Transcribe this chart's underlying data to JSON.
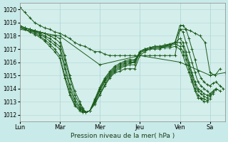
{
  "background_color": "#c8eae8",
  "plot_bg_color": "#d4eeec",
  "grid_color": "#b0d8d4",
  "line_color": "#1a5c1a",
  "marker_color": "#1a5c1a",
  "xlabel": "Pression niveau de la mer( hPa )",
  "ylim": [
    1011.5,
    1020.5
  ],
  "yticks": [
    1012,
    1013,
    1014,
    1015,
    1016,
    1017,
    1018,
    1019,
    1020
  ],
  "xtick_labels": [
    "Lun",
    "Mar",
    "Mer",
    "Jeu",
    "Ven",
    "Sa"
  ],
  "xtick_positions": [
    0,
    40,
    80,
    120,
    160,
    190
  ],
  "total_hours": 205,
  "series": [
    {
      "x": [
        0,
        5,
        10,
        15,
        20,
        25,
        30,
        35,
        40,
        45,
        50,
        55,
        60,
        65,
        70,
        75,
        80,
        85,
        90,
        95,
        100,
        105,
        110,
        115,
        120,
        125,
        130,
        135,
        140,
        145,
        150,
        155,
        160,
        165,
        170,
        175,
        180,
        185,
        190,
        195,
        200
      ],
      "y": [
        1020.2,
        1019.8,
        1019.4,
        1019.0,
        1018.8,
        1018.6,
        1018.5,
        1018.3,
        1018.2,
        1018.0,
        1017.8,
        1017.5,
        1017.3,
        1017.2,
        1017.0,
        1016.8,
        1016.8,
        1016.6,
        1016.5,
        1016.5,
        1016.5,
        1016.5,
        1016.5,
        1016.5,
        1016.5,
        1016.5,
        1016.5,
        1016.5,
        1016.5,
        1016.5,
        1016.5,
        1016.5,
        1018.5,
        1018.5,
        1018.4,
        1018.2,
        1018.0,
        1017.5,
        1015.2,
        1015.0,
        1015.5
      ]
    },
    {
      "x": [
        0,
        5,
        10,
        15,
        20,
        25,
        30,
        35,
        40,
        45,
        50,
        55,
        60,
        63,
        66,
        70,
        75,
        80,
        85,
        90,
        95,
        100,
        105,
        110,
        115,
        120,
        125,
        130,
        135,
        140,
        145,
        150,
        155,
        160,
        163,
        166,
        169,
        172,
        175,
        178,
        181,
        184,
        187,
        190,
        193,
        196,
        200,
        203
      ],
      "y": [
        1018.8,
        1018.6,
        1018.5,
        1018.4,
        1018.3,
        1018.2,
        1018.0,
        1018.0,
        1017.8,
        1016.5,
        1015.0,
        1013.8,
        1013.0,
        1012.5,
        1012.2,
        1012.3,
        1012.8,
        1013.5,
        1014.2,
        1014.8,
        1015.2,
        1015.3,
        1015.5,
        1015.5,
        1015.5,
        1016.5,
        1016.8,
        1017.0,
        1017.0,
        1017.0,
        1017.2,
        1017.3,
        1017.5,
        1018.8,
        1018.8,
        1018.5,
        1017.8,
        1017.0,
        1016.2,
        1015.3,
        1014.8,
        1014.5,
        1014.3,
        1014.2,
        1014.4,
        1014.5,
        1014.2,
        1014.0
      ]
    },
    {
      "x": [
        0,
        5,
        10,
        15,
        20,
        25,
        30,
        35,
        40,
        45,
        50,
        55,
        60,
        63,
        66,
        70,
        75,
        80,
        85,
        90,
        95,
        100,
        105,
        110,
        115,
        120,
        125,
        130,
        135,
        140,
        145,
        150,
        155,
        160,
        163,
        166,
        169,
        172,
        175,
        178,
        181,
        184,
        187,
        190,
        193,
        196,
        200
      ],
      "y": [
        1018.8,
        1018.6,
        1018.5,
        1018.4,
        1018.3,
        1018.2,
        1018.0,
        1017.8,
        1017.5,
        1016.2,
        1014.8,
        1013.5,
        1012.8,
        1012.4,
        1012.2,
        1012.3,
        1012.9,
        1013.6,
        1014.3,
        1014.9,
        1015.3,
        1015.5,
        1015.7,
        1015.8,
        1015.8,
        1016.7,
        1016.9,
        1017.0,
        1017.1,
        1017.1,
        1017.2,
        1017.3,
        1017.5,
        1018.5,
        1018.3,
        1017.5,
        1016.8,
        1016.0,
        1015.2,
        1014.5,
        1014.2,
        1014.0,
        1013.8,
        1013.6,
        1013.8,
        1014.0,
        1013.8
      ]
    },
    {
      "x": [
        0,
        5,
        10,
        15,
        20,
        25,
        30,
        35,
        40,
        45,
        50,
        55,
        60,
        63,
        66,
        70,
        75,
        80,
        85,
        90,
        95,
        100,
        105,
        110,
        115,
        120,
        125,
        130,
        135,
        140,
        145,
        150,
        155,
        160,
        163,
        166,
        169,
        172,
        175,
        178,
        181,
        184,
        187,
        190,
        193,
        196
      ],
      "y": [
        1018.8,
        1018.6,
        1018.5,
        1018.4,
        1018.2,
        1018.0,
        1017.8,
        1017.5,
        1017.2,
        1015.8,
        1014.3,
        1013.2,
        1012.6,
        1012.3,
        1012.2,
        1012.3,
        1013.0,
        1013.8,
        1014.5,
        1015.0,
        1015.4,
        1015.6,
        1015.8,
        1015.9,
        1016.0,
        1016.8,
        1017.0,
        1017.1,
        1017.2,
        1017.2,
        1017.3,
        1017.4,
        1017.5,
        1017.8,
        1017.5,
        1016.8,
        1016.0,
        1015.2,
        1014.5,
        1014.0,
        1013.8,
        1013.6,
        1013.5,
        1013.5,
        1013.7,
        1013.9
      ]
    },
    {
      "x": [
        0,
        5,
        10,
        15,
        20,
        25,
        30,
        35,
        40,
        45,
        50,
        55,
        60,
        63,
        66,
        70,
        75,
        80,
        85,
        90,
        95,
        100,
        105,
        110,
        115,
        120,
        125,
        130,
        135,
        140,
        145,
        150,
        155,
        160,
        163,
        166,
        169,
        172,
        175,
        178,
        181,
        184,
        187,
        190,
        193
      ],
      "y": [
        1018.8,
        1018.6,
        1018.5,
        1018.3,
        1018.1,
        1017.9,
        1017.6,
        1017.3,
        1017.0,
        1015.5,
        1014.0,
        1013.0,
        1012.5,
        1012.3,
        1012.2,
        1012.3,
        1013.0,
        1013.9,
        1014.6,
        1015.1,
        1015.5,
        1015.7,
        1015.9,
        1016.0,
        1016.0,
        1016.8,
        1017.0,
        1017.1,
        1017.2,
        1017.2,
        1017.3,
        1017.3,
        1017.5,
        1017.5,
        1017.2,
        1016.5,
        1015.8,
        1015.0,
        1014.3,
        1013.8,
        1013.6,
        1013.4,
        1013.3,
        1013.4,
        1013.6
      ]
    },
    {
      "x": [
        0,
        5,
        10,
        15,
        20,
        25,
        30,
        35,
        40,
        45,
        50,
        55,
        60,
        63,
        66,
        70,
        75,
        80,
        85,
        90,
        95,
        100,
        105,
        110,
        115,
        120,
        125,
        130,
        135,
        140,
        145,
        150,
        155,
        160,
        163,
        166,
        169,
        172,
        175,
        178,
        181,
        184,
        187,
        190
      ],
      "y": [
        1018.7,
        1018.5,
        1018.4,
        1018.2,
        1018.0,
        1017.7,
        1017.4,
        1017.0,
        1016.5,
        1015.0,
        1013.7,
        1012.8,
        1012.4,
        1012.2,
        1012.2,
        1012.3,
        1013.1,
        1014.0,
        1014.7,
        1015.2,
        1015.6,
        1015.8,
        1016.0,
        1016.1,
        1016.1,
        1016.8,
        1017.0,
        1017.1,
        1017.2,
        1017.2,
        1017.2,
        1017.2,
        1017.4,
        1017.2,
        1016.8,
        1016.2,
        1015.5,
        1014.7,
        1014.0,
        1013.5,
        1013.3,
        1013.2,
        1013.1,
        1013.2
      ]
    },
    {
      "x": [
        0,
        5,
        10,
        15,
        20,
        25,
        30,
        35,
        40,
        45,
        50,
        55,
        60,
        63,
        66,
        70,
        75,
        80,
        85,
        90,
        95,
        100,
        105,
        110,
        115,
        120,
        125,
        130,
        135,
        140,
        145,
        150,
        155,
        160,
        163,
        166,
        169,
        172,
        175,
        178,
        181,
        184,
        187
      ],
      "y": [
        1018.6,
        1018.5,
        1018.3,
        1018.1,
        1017.9,
        1017.6,
        1017.2,
        1016.8,
        1016.3,
        1014.8,
        1013.5,
        1012.7,
        1012.3,
        1012.2,
        1012.2,
        1012.3,
        1013.2,
        1014.1,
        1014.8,
        1015.3,
        1015.7,
        1015.9,
        1016.1,
        1016.2,
        1016.2,
        1016.7,
        1016.9,
        1017.0,
        1017.1,
        1017.1,
        1017.1,
        1017.1,
        1017.2,
        1017.0,
        1016.5,
        1015.8,
        1015.2,
        1014.5,
        1013.8,
        1013.3,
        1013.2,
        1013.0,
        1013.0
      ]
    },
    {
      "x": [
        0,
        40,
        80,
        120,
        160,
        190,
        205
      ],
      "y": [
        1018.5,
        1018.0,
        1015.8,
        1016.5,
        1016.0,
        1015.0,
        1015.2
      ]
    }
  ]
}
